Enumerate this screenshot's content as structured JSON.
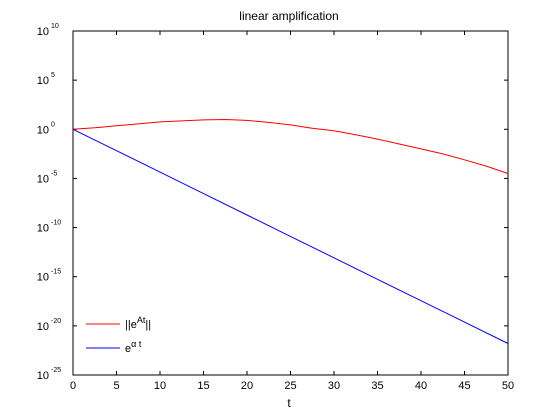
{
  "chart_data": {
    "type": "line",
    "title": "linear amplification",
    "xlabel": "t",
    "ylabel": "",
    "xlim": [
      0,
      50
    ],
    "ylim_log10": [
      -25,
      10
    ],
    "yscale": "log",
    "grid": false,
    "legend_position": "bottom-left",
    "x_ticks": [
      0,
      5,
      10,
      15,
      20,
      25,
      30,
      35,
      40,
      45,
      50
    ],
    "x_tick_labels": [
      "0",
      "5",
      "10",
      "15",
      "20",
      "25",
      "30",
      "35",
      "40",
      "45",
      "50"
    ],
    "y_ticks_log10": [
      10,
      5,
      0,
      -5,
      -10,
      -15,
      -20,
      -25
    ],
    "y_tick_base": "10",
    "y_tick_exponents": [
      "10",
      "5",
      "0",
      "-5",
      "-10",
      "-15",
      "-20",
      "-25"
    ],
    "legend": [
      {
        "base": "||e",
        "sup": "At",
        "tail": "||",
        "color": "#ff0000"
      },
      {
        "base": "e",
        "sup": "α t",
        "tail": "",
        "color": "#0000ff"
      }
    ],
    "series": [
      {
        "color": "#ff0000",
        "x": [
          0,
          2.5,
          5,
          7.5,
          10,
          12.5,
          15,
          17.5,
          20,
          22.5,
          25,
          27.5,
          30,
          32.5,
          35,
          37.5,
          40,
          42.5,
          45,
          47.5,
          50
        ],
        "y_log10": [
          0,
          0.15,
          0.35,
          0.55,
          0.75,
          0.85,
          0.95,
          1.0,
          0.9,
          0.7,
          0.45,
          0.1,
          -0.15,
          -0.55,
          -1.0,
          -1.5,
          -2.0,
          -2.5,
          -3.1,
          -3.75,
          -4.5
        ]
      },
      {
        "color": "#0000ff",
        "x": [
          0,
          5,
          10,
          15,
          20,
          25,
          30,
          35,
          40,
          45,
          50
        ],
        "y_log10": [
          0,
          -2.18,
          -4.36,
          -6.54,
          -8.72,
          -10.9,
          -13.08,
          -15.26,
          -17.44,
          -19.62,
          -21.8
        ]
      }
    ]
  }
}
